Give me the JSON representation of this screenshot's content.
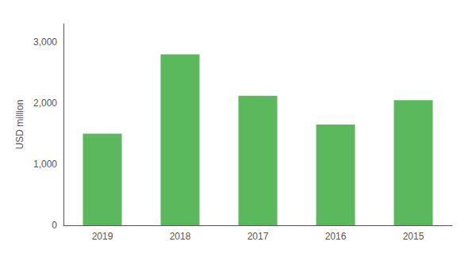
{
  "chart_data": {
    "type": "bar",
    "categories": [
      "2019",
      "2018",
      "2017",
      "2016",
      "2015"
    ],
    "values": [
      1500,
      2800,
      2120,
      1650,
      2050
    ],
    "color": "#5cb85c",
    "ylabel": "USD million",
    "ylim": [
      0,
      3300
    ],
    "yticks": [
      0,
      {
        "value": 1000,
        "label": "1,000"
      },
      {
        "value": 2000,
        "label": "2,000"
      },
      {
        "value": 3000,
        "label": "3,000"
      }
    ],
    "grid": false
  }
}
